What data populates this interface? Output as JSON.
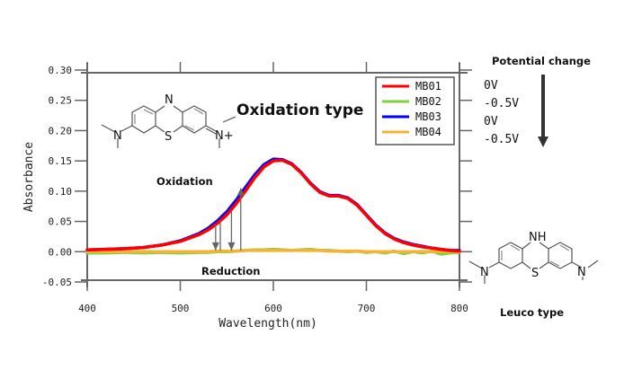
{
  "chart_data": {
    "type": "line",
    "title": "",
    "xlabel": "Wavelength(nm)",
    "ylabel": "Absorbance",
    "xlim": [
      400,
      800
    ],
    "ylim": [
      -0.05,
      0.3
    ],
    "xticks": [
      400,
      500,
      600,
      700,
      800
    ],
    "xtick_labels": [
      "400",
      "500",
      "600",
      "700",
      "800"
    ],
    "yticks": [
      -0.05,
      0.0,
      0.05,
      0.1,
      0.15,
      0.2,
      0.25,
      0.3
    ],
    "ytick_labels": [
      "-0.05",
      "0.00",
      "0.05",
      "0.10",
      "0.15",
      "0.20",
      "0.25",
      "0.30"
    ],
    "grid": false,
    "legend_position": "top-right",
    "x": [
      400,
      420,
      440,
      460,
      480,
      500,
      520,
      530,
      540,
      550,
      560,
      570,
      580,
      590,
      600,
      610,
      620,
      630,
      640,
      650,
      660,
      670,
      680,
      690,
      700,
      710,
      720,
      730,
      740,
      750,
      760,
      770,
      780,
      790,
      800
    ],
    "series": [
      {
        "name": "MB01",
        "color": "#ff0000",
        "values": [
          0.003,
          0.004,
          0.005,
          0.007,
          0.011,
          0.017,
          0.028,
          0.036,
          0.047,
          0.061,
          0.079,
          0.1,
          0.122,
          0.14,
          0.15,
          0.151,
          0.144,
          0.13,
          0.112,
          0.098,
          0.092,
          0.092,
          0.088,
          0.077,
          0.06,
          0.043,
          0.03,
          0.021,
          0.015,
          0.011,
          0.008,
          0.006,
          0.004,
          0.002,
          0.001
        ]
      },
      {
        "name": "MB02",
        "color": "#7fd13b",
        "values": [
          -0.002,
          -0.002,
          -0.001,
          -0.002,
          -0.001,
          -0.002,
          -0.001,
          -0.001,
          0.0,
          0.0,
          0.001,
          0.002,
          0.003,
          0.003,
          0.004,
          0.003,
          0.002,
          0.003,
          0.004,
          0.002,
          0.002,
          0.001,
          0.0,
          0.001,
          -0.001,
          0.0,
          -0.002,
          0.001,
          -0.003,
          0.0,
          -0.002,
          0.001,
          -0.004,
          -0.002,
          -0.001
        ]
      },
      {
        "name": "MB03",
        "color": "#0000ff",
        "values": [
          0.003,
          0.004,
          0.005,
          0.007,
          0.011,
          0.018,
          0.03,
          0.039,
          0.051,
          0.066,
          0.085,
          0.106,
          0.127,
          0.144,
          0.153,
          0.152,
          0.145,
          0.131,
          0.113,
          0.099,
          0.093,
          0.093,
          0.089,
          0.078,
          0.061,
          0.044,
          0.031,
          0.022,
          0.016,
          0.012,
          0.009,
          0.006,
          0.004,
          0.002,
          0.002
        ]
      },
      {
        "name": "MB04",
        "color": "#f5b335",
        "values": [
          0.0,
          0.0,
          0.0,
          0.0,
          0.0,
          0.0,
          0.0,
          0.0,
          0.001,
          0.001,
          0.001,
          0.002,
          0.002,
          0.002,
          0.002,
          0.002,
          0.002,
          0.002,
          0.002,
          0.002,
          0.001,
          0.001,
          0.001,
          0.001,
          0.0,
          0.0,
          0.0,
          0.0,
          0.0,
          0.0,
          0.0,
          0.0,
          0.0,
          0.0,
          0.0
        ]
      }
    ],
    "annotations": {
      "oxidation_label": "Oxidation",
      "reduction_label": "Reduction",
      "oxidation_type_label": "Oxidation type",
      "leuco_type_label": "Leuco type",
      "potential_change_title": "Potential change",
      "potential_steps": [
        "0V",
        "-0.5V",
        "0V",
        "-0.5V"
      ],
      "arrows": [
        {
          "x": 538,
          "from": 0.045,
          "to": 0.002,
          "direction": "down"
        },
        {
          "x": 543,
          "from": 0.002,
          "to": 0.052,
          "direction": "none"
        },
        {
          "x": 555,
          "from": 0.068,
          "to": 0.002,
          "direction": "down"
        },
        {
          "x": 565,
          "from": 0.002,
          "to": 0.105,
          "direction": "up"
        }
      ]
    },
    "structures": {
      "oxidized": {
        "atoms": [
          "N",
          "S",
          "N",
          "N+"
        ],
        "charge": "+"
      },
      "leuco": {
        "atoms": [
          "NH",
          "S",
          "N",
          "N"
        ]
      }
    }
  }
}
